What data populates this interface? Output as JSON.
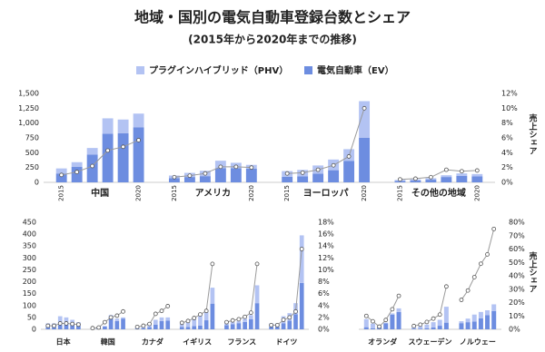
{
  "title": "地域・国別の電気自動車登録台数とシェア",
  "subtitle": "(2015年から2020年までの推移)",
  "legend": [
    {
      "name": "プラグインハイブリッド（PHV）",
      "color": "#b3c3f3"
    },
    {
      "name": "電気自動車（EV）",
      "color": "#6d8de0"
    }
  ],
  "chart_data": [
    {
      "type": "bar",
      "stacked": true,
      "line_color": "#9a9a9a",
      "ylim": [
        0,
        1500
      ],
      "yticks": [
        0,
        250,
        500,
        750,
        {
          "value": 1000,
          "label": "1,000"
        },
        {
          "value": 1250,
          "label": "1,250"
        },
        {
          "value": 1500,
          "label": "1,500"
        }
      ],
      "y2lim": [
        0,
        12
      ],
      "y2ticks": [
        {
          "value": 0,
          "label": "0%"
        },
        {
          "value": 2,
          "label": "2%"
        },
        {
          "value": 4,
          "label": "4%"
        },
        {
          "value": 6,
          "label": "6%"
        },
        {
          "value": 8,
          "label": "8%"
        },
        {
          "value": 10,
          "label": "10%"
        },
        {
          "value": 12,
          "label": "12%"
        }
      ],
      "y2label": "売上シェア",
      "groups": [
        {
          "label": "中国",
          "categories": [
            "2015",
            null,
            null,
            null,
            null,
            "2020"
          ],
          "ev": [
            150,
            260,
            470,
            820,
            830,
            930
          ],
          "phv": [
            85,
            80,
            110,
            260,
            230,
            230
          ],
          "share": [
            1.0,
            1.4,
            2.2,
            4.3,
            4.8,
            5.7
          ]
        },
        {
          "label": "アメリカ",
          "categories": [
            "2015",
            null,
            null,
            null,
            null,
            "2020"
          ],
          "ev": [
            70,
            90,
            105,
            240,
            240,
            230
          ],
          "phv": [
            45,
            70,
            90,
            125,
            90,
            65
          ],
          "share": [
            0.7,
            0.9,
            1.2,
            2.1,
            2.1,
            2.0
          ]
        },
        {
          "label": "ヨーロッパ",
          "categories": [
            "2015",
            null,
            null,
            null,
            null,
            "2020"
          ],
          "ev": [
            95,
            100,
            145,
            205,
            360,
            750
          ],
          "phv": [
            95,
            110,
            140,
            180,
            200,
            620
          ],
          "share": [
            1.2,
            1.3,
            1.7,
            2.3,
            3.5,
            10.0
          ]
        },
        {
          "label": "その他の地域",
          "categories": [
            "2015",
            null,
            null,
            null,
            null,
            "2020"
          ],
          "ev": [
            25,
            30,
            45,
            90,
            110,
            100
          ],
          "phv": [
            15,
            20,
            25,
            30,
            40,
            40
          ],
          "share": [
            0.4,
            0.5,
            0.7,
            1.7,
            1.5,
            1.6
          ]
        }
      ]
    },
    {
      "type": "bar",
      "stacked": true,
      "line_color": "#9a9a9a",
      "ylim": [
        0,
        450
      ],
      "yticks": [
        0,
        50,
        100,
        150,
        200,
        250,
        300,
        350,
        400,
        450
      ],
      "y2lim": [
        0,
        18
      ],
      "y2ticks": [
        {
          "value": 0,
          "label": "0%"
        },
        {
          "value": 2,
          "label": "2%"
        },
        {
          "value": 4,
          "label": "4%"
        },
        {
          "value": 6,
          "label": "6%"
        },
        {
          "value": 8,
          "label": "8%"
        },
        {
          "value": 10,
          "label": "10%"
        },
        {
          "value": 12,
          "label": "12%"
        },
        {
          "value": 14,
          "label": "14%"
        },
        {
          "value": 16,
          "label": "16%"
        },
        {
          "value": 18,
          "label": "18%"
        }
      ],
      "groups": [
        {
          "label": "日本",
          "ev": [
            10,
            15,
            18,
            26,
            21,
            15
          ],
          "phv": [
            15,
            10,
            37,
            24,
            19,
            15
          ],
          "share": [
            0.6,
            0.6,
            1.0,
            1.0,
            0.9,
            0.8
          ]
        },
        {
          "label": "韓国",
          "ev": [
            2,
            4,
            12,
            55,
            35,
            45
          ],
          "phv": [
            1,
            1,
            2,
            5,
            10,
            5
          ],
          "share": [
            0.2,
            0.3,
            1.2,
            2.0,
            2.3,
            3.0
          ]
        },
        {
          "label": "カナダ",
          "ev": [
            3,
            5,
            9,
            20,
            35,
            37
          ],
          "phv": [
            4,
            7,
            9,
            20,
            15,
            13
          ],
          "share": [
            0.4,
            0.6,
            0.9,
            2.6,
            3.1,
            3.9
          ]
        },
        {
          "label": "イギリス",
          "ev": [
            10,
            10,
            14,
            16,
            38,
            108
          ],
          "phv": [
            20,
            28,
            34,
            44,
            37,
            67
          ],
          "share": [
            1.1,
            1.4,
            1.9,
            2.5,
            3.1,
            11.0
          ]
        },
        {
          "label": "フランス",
          "ev": [
            17,
            21,
            26,
            31,
            42,
            110
          ],
          "phv": [
            8,
            9,
            9,
            14,
            18,
            75
          ],
          "share": [
            1.2,
            1.5,
            1.7,
            2.1,
            2.8,
            11.0
          ]
        },
        {
          "label": "ドイツ",
          "ev": [
            12,
            11,
            25,
            36,
            63,
            195
          ],
          "phv": [
            13,
            14,
            30,
            32,
            47,
            200
          ],
          "share": [
            0.7,
            0.7,
            1.6,
            2.0,
            3.0,
            13.5
          ]
        }
      ]
    },
    {
      "type": "bar",
      "stacked": true,
      "line_color": "#9a9a9a",
      "ylim": [
        0,
        450
      ],
      "y2lim": [
        0,
        80
      ],
      "y2ticks": [
        {
          "value": 0,
          "label": "0%"
        },
        {
          "value": 10,
          "label": "10%"
        },
        {
          "value": 20,
          "label": "20%"
        },
        {
          "value": 30,
          "label": "30%"
        },
        {
          "value": 40,
          "label": "40%"
        },
        {
          "value": 50,
          "label": "50%"
        },
        {
          "value": 60,
          "label": "60%"
        },
        {
          "value": 70,
          "label": "70%"
        },
        {
          "value": 80,
          "label": "80%"
        }
      ],
      "y2label": "売上シェア",
      "groups": [
        {
          "label": "オランダ",
          "ev": [
            9,
            4,
            10,
            25,
            62,
            73
          ],
          "phv": [
            34,
            20,
            1,
            3,
            5,
            15
          ],
          "share": [
            10,
            6,
            2,
            7,
            15,
            25
          ]
        },
        {
          "label": "スウェーデン",
          "ev": [
            3,
            3,
            4,
            8,
            15,
            28
          ],
          "phv": [
            6,
            10,
            16,
            22,
            25,
            67
          ],
          "share": [
            2.5,
            3.5,
            5.5,
            8,
            11,
            32
          ]
        },
        {
          "label": "ノルウェー",
          "ev": [
            26,
            30,
            33,
            46,
            60,
            77
          ],
          "phv": [
            8,
            15,
            29,
            27,
            20,
            28
          ],
          "share": [
            22,
            29,
            39,
            49,
            56,
            75
          ]
        }
      ]
    }
  ]
}
